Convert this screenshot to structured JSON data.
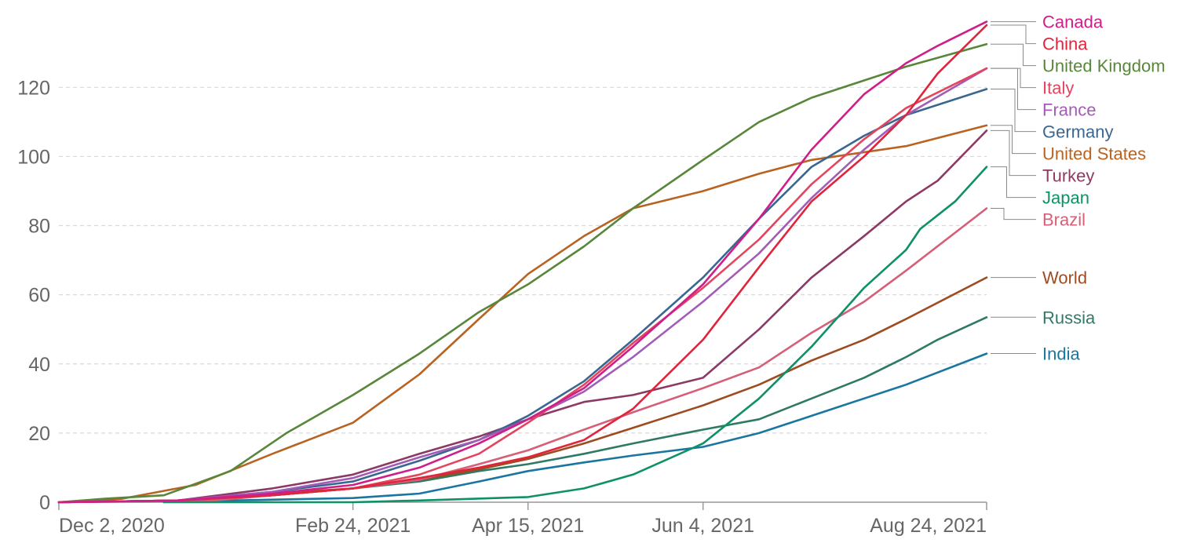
{
  "chart_data": {
    "type": "line",
    "title": "",
    "xlabel": "",
    "ylabel": "",
    "x_ticks": [
      "Dec 2, 2020",
      "Feb 24, 2021",
      "Apr 15, 2021",
      "Jun 4, 2021",
      "Aug 24, 2021"
    ],
    "xlim": [
      "2020-12-02",
      "2021-08-24"
    ],
    "y_ticks": [
      0,
      20,
      40,
      60,
      80,
      100,
      120
    ],
    "ylim": [
      0,
      138
    ],
    "grid": "horizontal dashed",
    "legend": "right, labels at line ends",
    "series": [
      {
        "name": "Canada",
        "color": "#cf1e8a",
        "points": [
          [
            "2020-12-02",
            0
          ],
          [
            "2021-01-05",
            0.5
          ],
          [
            "2021-02-01",
            2.5
          ],
          [
            "2021-02-24",
            5
          ],
          [
            "2021-03-15",
            10
          ],
          [
            "2021-04-01",
            17
          ],
          [
            "2021-04-15",
            24
          ],
          [
            "2021-05-01",
            33
          ],
          [
            "2021-05-15",
            45
          ],
          [
            "2021-06-04",
            63
          ],
          [
            "2021-06-20",
            82
          ],
          [
            "2021-07-05",
            102
          ],
          [
            "2021-07-20",
            118
          ],
          [
            "2021-08-01",
            127
          ],
          [
            "2021-08-10",
            132
          ],
          [
            "2021-08-24",
            139
          ]
        ]
      },
      {
        "name": "China",
        "color": "#e0243b",
        "points": [
          [
            "2020-12-02",
            0
          ],
          [
            "2021-01-05",
            0.5
          ],
          [
            "2021-02-01",
            2
          ],
          [
            "2021-02-24",
            4
          ],
          [
            "2021-03-15",
            7
          ],
          [
            "2021-04-01",
            10
          ],
          [
            "2021-04-15",
            13
          ],
          [
            "2021-05-01",
            18
          ],
          [
            "2021-05-15",
            27
          ],
          [
            "2021-06-04",
            47
          ],
          [
            "2021-06-20",
            68
          ],
          [
            "2021-07-05",
            87
          ],
          [
            "2021-07-20",
            100
          ],
          [
            "2021-08-01",
            112
          ],
          [
            "2021-08-10",
            124
          ],
          [
            "2021-08-24",
            138
          ]
        ]
      },
      {
        "name": "United Kingdom",
        "color": "#58873b",
        "points": [
          [
            "2020-12-02",
            0
          ],
          [
            "2020-12-15",
            1
          ],
          [
            "2021-01-01",
            2
          ],
          [
            "2021-01-20",
            9
          ],
          [
            "2021-02-05",
            20
          ],
          [
            "2021-02-24",
            31
          ],
          [
            "2021-03-15",
            43
          ],
          [
            "2021-04-01",
            55
          ],
          [
            "2021-04-15",
            63
          ],
          [
            "2021-05-01",
            74
          ],
          [
            "2021-05-15",
            85
          ],
          [
            "2021-06-04",
            99
          ],
          [
            "2021-06-20",
            110
          ],
          [
            "2021-07-05",
            117
          ],
          [
            "2021-07-20",
            122
          ],
          [
            "2021-08-01",
            126
          ],
          [
            "2021-08-24",
            132.5
          ]
        ]
      },
      {
        "name": "Italy",
        "color": "#e4455e",
        "points": [
          [
            "2020-12-02",
            0
          ],
          [
            "2021-01-05",
            0.5
          ],
          [
            "2021-02-01",
            2
          ],
          [
            "2021-02-24",
            4
          ],
          [
            "2021-03-15",
            8
          ],
          [
            "2021-04-01",
            14
          ],
          [
            "2021-04-15",
            23
          ],
          [
            "2021-05-01",
            34
          ],
          [
            "2021-05-15",
            46
          ],
          [
            "2021-06-04",
            62
          ],
          [
            "2021-06-20",
            76
          ],
          [
            "2021-07-05",
            92
          ],
          [
            "2021-07-20",
            105
          ],
          [
            "2021-08-01",
            114
          ],
          [
            "2021-08-24",
            125.5
          ]
        ]
      },
      {
        "name": "France",
        "color": "#a35cb5",
        "points": [
          [
            "2020-12-02",
            0
          ],
          [
            "2021-01-05",
            0.5
          ],
          [
            "2021-02-01",
            3
          ],
          [
            "2021-02-24",
            7
          ],
          [
            "2021-03-15",
            13
          ],
          [
            "2021-04-01",
            18
          ],
          [
            "2021-04-15",
            24
          ],
          [
            "2021-05-01",
            32
          ],
          [
            "2021-05-15",
            42
          ],
          [
            "2021-06-04",
            58
          ],
          [
            "2021-06-20",
            72
          ],
          [
            "2021-07-05",
            88
          ],
          [
            "2021-07-20",
            102
          ],
          [
            "2021-08-01",
            112
          ],
          [
            "2021-08-24",
            125.5
          ]
        ]
      },
      {
        "name": "Germany",
        "color": "#3a6790",
        "points": [
          [
            "2020-12-02",
            0
          ],
          [
            "2021-01-05",
            0.5
          ],
          [
            "2021-02-01",
            3
          ],
          [
            "2021-02-24",
            6
          ],
          [
            "2021-03-15",
            12
          ],
          [
            "2021-04-01",
            18
          ],
          [
            "2021-04-15",
            25
          ],
          [
            "2021-05-01",
            35
          ],
          [
            "2021-05-15",
            47
          ],
          [
            "2021-06-04",
            65
          ],
          [
            "2021-06-20",
            82
          ],
          [
            "2021-07-05",
            97
          ],
          [
            "2021-07-20",
            106
          ],
          [
            "2021-08-01",
            112
          ],
          [
            "2021-08-24",
            119.5
          ]
        ]
      },
      {
        "name": "United States",
        "color": "#b86321",
        "points": [
          [
            "2020-12-02",
            0
          ],
          [
            "2020-12-20",
            1
          ],
          [
            "2021-01-10",
            5
          ],
          [
            "2021-02-01",
            14
          ],
          [
            "2021-02-24",
            23
          ],
          [
            "2021-03-15",
            37
          ],
          [
            "2021-04-01",
            53
          ],
          [
            "2021-04-15",
            66
          ],
          [
            "2021-05-01",
            77
          ],
          [
            "2021-05-15",
            85
          ],
          [
            "2021-06-04",
            90
          ],
          [
            "2021-06-20",
            95
          ],
          [
            "2021-07-05",
            99
          ],
          [
            "2021-08-01",
            103
          ],
          [
            "2021-08-24",
            109
          ]
        ]
      },
      {
        "name": "Turkey",
        "color": "#8c3a65",
        "points": [
          [
            "2020-12-02",
            0
          ],
          [
            "2021-01-05",
            0.5
          ],
          [
            "2021-02-01",
            4
          ],
          [
            "2021-02-24",
            8
          ],
          [
            "2021-03-15",
            14
          ],
          [
            "2021-04-01",
            19
          ],
          [
            "2021-04-15",
            24
          ],
          [
            "2021-05-01",
            29
          ],
          [
            "2021-05-15",
            31
          ],
          [
            "2021-06-04",
            36
          ],
          [
            "2021-06-20",
            50
          ],
          [
            "2021-07-05",
            65
          ],
          [
            "2021-07-20",
            77
          ],
          [
            "2021-08-01",
            87
          ],
          [
            "2021-08-10",
            93
          ],
          [
            "2021-08-24",
            107.5
          ]
        ]
      },
      {
        "name": "Japan",
        "color": "#0e9068",
        "points": [
          [
            "2021-01-01",
            0
          ],
          [
            "2021-02-24",
            0
          ],
          [
            "2021-03-15",
            0.5
          ],
          [
            "2021-04-15",
            1.5
          ],
          [
            "2021-05-01",
            4
          ],
          [
            "2021-05-15",
            8
          ],
          [
            "2021-06-04",
            17
          ],
          [
            "2021-06-20",
            30
          ],
          [
            "2021-07-05",
            45
          ],
          [
            "2021-07-20",
            62
          ],
          [
            "2021-08-01",
            73
          ],
          [
            "2021-08-05",
            79
          ],
          [
            "2021-08-15",
            87
          ],
          [
            "2021-08-24",
            97
          ]
        ]
      },
      {
        "name": "Brazil",
        "color": "#d65f78",
        "points": [
          [
            "2020-12-02",
            0
          ],
          [
            "2021-01-15",
            0.5
          ],
          [
            "2021-02-01",
            2
          ],
          [
            "2021-02-24",
            4
          ],
          [
            "2021-03-15",
            6.5
          ],
          [
            "2021-04-01",
            11
          ],
          [
            "2021-04-15",
            15
          ],
          [
            "2021-05-01",
            21
          ],
          [
            "2021-05-15",
            26
          ],
          [
            "2021-06-04",
            33
          ],
          [
            "2021-06-20",
            39
          ],
          [
            "2021-07-05",
            49
          ],
          [
            "2021-07-20",
            58
          ],
          [
            "2021-08-01",
            67
          ],
          [
            "2021-08-24",
            85
          ]
        ]
      },
      {
        "name": "World",
        "color": "#9c4c20",
        "points": [
          [
            "2020-12-02",
            0
          ],
          [
            "2021-01-05",
            0.5
          ],
          [
            "2021-02-01",
            2.5
          ],
          [
            "2021-02-24",
            4
          ],
          [
            "2021-03-15",
            6.5
          ],
          [
            "2021-04-01",
            9.5
          ],
          [
            "2021-04-15",
            12.5
          ],
          [
            "2021-05-01",
            17
          ],
          [
            "2021-05-15",
            21.5
          ],
          [
            "2021-06-04",
            28
          ],
          [
            "2021-06-20",
            34
          ],
          [
            "2021-07-05",
            41
          ],
          [
            "2021-07-20",
            47
          ],
          [
            "2021-08-01",
            53
          ],
          [
            "2021-08-24",
            65
          ]
        ]
      },
      {
        "name": "Russia",
        "color": "#2f7a66",
        "points": [
          [
            "2020-12-02",
            0
          ],
          [
            "2021-01-01",
            0.3
          ],
          [
            "2021-02-01",
            2
          ],
          [
            "2021-02-24",
            4
          ],
          [
            "2021-03-15",
            6
          ],
          [
            "2021-04-01",
            9
          ],
          [
            "2021-04-15",
            11
          ],
          [
            "2021-05-01",
            14
          ],
          [
            "2021-05-15",
            17
          ],
          [
            "2021-06-04",
            21
          ],
          [
            "2021-06-20",
            24
          ],
          [
            "2021-07-05",
            30
          ],
          [
            "2021-07-20",
            36
          ],
          [
            "2021-08-01",
            42
          ],
          [
            "2021-08-10",
            47
          ],
          [
            "2021-08-24",
            53.5
          ]
        ]
      },
      {
        "name": "India",
        "color": "#1a76a0",
        "points": [
          [
            "2021-01-01",
            0.2
          ],
          [
            "2021-01-20",
            0.5
          ],
          [
            "2021-02-24",
            1.2
          ],
          [
            "2021-03-15",
            2.5
          ],
          [
            "2021-04-01",
            6
          ],
          [
            "2021-04-15",
            9
          ],
          [
            "2021-05-01",
            11.5
          ],
          [
            "2021-05-15",
            13.5
          ],
          [
            "2021-06-04",
            16
          ],
          [
            "2021-06-20",
            20
          ],
          [
            "2021-07-05",
            25
          ],
          [
            "2021-07-20",
            30
          ],
          [
            "2021-08-01",
            34
          ],
          [
            "2021-08-24",
            43
          ]
        ]
      }
    ]
  }
}
